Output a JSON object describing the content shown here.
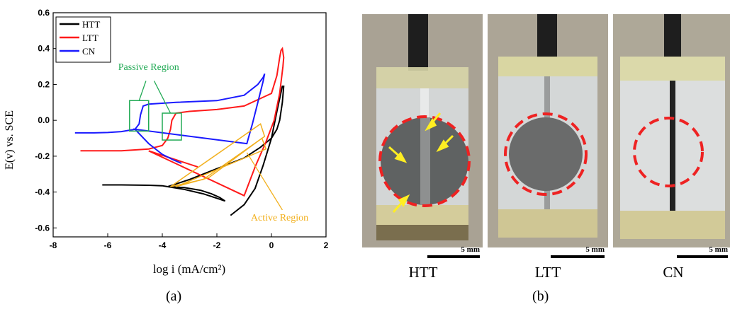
{
  "figure": {
    "label_a": "(a)",
    "label_b": "(b)",
    "photos": [
      {
        "label": "HTT",
        "scale_text": "5 mm"
      },
      {
        "label": "LTT",
        "scale_text": "5 mm"
      },
      {
        "label": "CN",
        "scale_text": "5 mm"
      }
    ]
  },
  "chart_data": {
    "type": "line",
    "title": "",
    "xlabel": "log i (mA/cm²)",
    "ylabel": "E(v) vs. SCE",
    "xlim": [
      -8,
      2
    ],
    "ylim": [
      -0.65,
      0.6
    ],
    "xticks": [
      -8,
      -6,
      -4,
      -2,
      0,
      2
    ],
    "yticks": [
      0.6,
      0.4,
      0.2,
      0.0,
      -0.2,
      -0.4,
      -0.6
    ],
    "xtick_labels": [
      "-8",
      "-6",
      "-4",
      "-2",
      "0",
      "2"
    ],
    "ytick_labels": [
      "0.6",
      "0.4",
      "0.2",
      "0.0",
      "-0.2",
      "-0.4",
      "-0.6"
    ],
    "grid": false,
    "legend_position": "top-left",
    "series": [
      {
        "name": "HTT",
        "color": "#000000",
        "x": [
          -6.2,
          -5.5,
          -4.5,
          -4.0,
          -3.8,
          -3.2,
          -2.6,
          -2.2,
          -1.9,
          -1.7,
          -1.9,
          -2.5,
          -3.2,
          -3.8,
          -3.0,
          -2.0,
          -1.0,
          -0.4,
          0.0,
          0.2,
          0.3,
          0.4,
          0.45,
          0.4,
          0.2,
          0.0,
          -0.3,
          -0.6,
          -1.0,
          -1.5
        ],
        "y": [
          -0.36,
          -0.36,
          -0.362,
          -0.365,
          -0.37,
          -0.375,
          -0.39,
          -0.41,
          -0.43,
          -0.45,
          -0.44,
          -0.41,
          -0.385,
          -0.37,
          -0.33,
          -0.27,
          -0.21,
          -0.15,
          -0.1,
          -0.05,
          0.0,
          0.1,
          0.19,
          0.19,
          0.05,
          -0.1,
          -0.25,
          -0.38,
          -0.47,
          -0.53
        ]
      },
      {
        "name": "LTT",
        "color": "#ff1a1a",
        "x": [
          -7.0,
          -6.5,
          -5.5,
          -4.5,
          -4.0,
          -3.8,
          -3.7,
          -3.65,
          -3.5,
          -3.0,
          -2.0,
          -1.0,
          0.0,
          0.2,
          0.3,
          0.35,
          0.4,
          0.45,
          0.42,
          0.3,
          0.1,
          -0.2,
          -0.6,
          -1.0,
          -4.5,
          -3.5,
          -2.7
        ],
        "y": [
          -0.17,
          -0.17,
          -0.17,
          -0.16,
          -0.14,
          -0.1,
          -0.05,
          0.0,
          0.04,
          0.05,
          0.06,
          0.08,
          0.15,
          0.25,
          0.35,
          0.39,
          0.4,
          0.35,
          0.3,
          0.15,
          0.0,
          -0.12,
          -0.26,
          -0.42,
          -0.17,
          -0.22,
          -0.26
        ]
      },
      {
        "name": "CN",
        "color": "#1a1aff",
        "x": [
          -7.2,
          -6.5,
          -6.0,
          -5.5,
          -5.0,
          -4.85,
          -4.8,
          -4.7,
          -4.5,
          -3.5,
          -2.0,
          -1.0,
          -0.5,
          -0.3,
          -0.25,
          -0.3,
          -0.5,
          -0.7,
          -0.9,
          -5.0,
          -4.5,
          -4.0,
          -3.6,
          -3.3
        ],
        "y": [
          -0.07,
          -0.07,
          -0.068,
          -0.063,
          -0.05,
          -0.02,
          0.03,
          0.08,
          0.09,
          0.1,
          0.11,
          0.14,
          0.2,
          0.24,
          0.26,
          0.22,
          0.1,
          -0.02,
          -0.13,
          -0.05,
          -0.13,
          -0.19,
          -0.22,
          -0.24
        ]
      }
    ],
    "annotations": [
      {
        "text": "Passive Region",
        "color": "#22aa55"
      },
      {
        "text": "Active Region",
        "color": "#f2b01e"
      }
    ]
  }
}
